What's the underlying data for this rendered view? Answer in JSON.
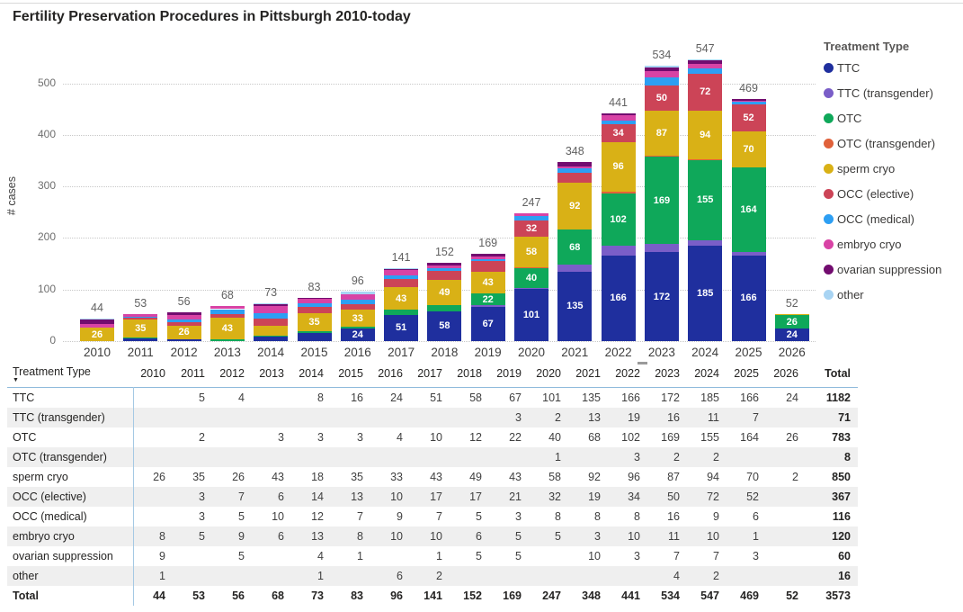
{
  "title": "Fertility Preservation Procedures in Pittsburgh 2010-today",
  "chart_data": {
    "type": "stacked-bar",
    "title": "Fertility Preservation Procedures in Pittsburgh 2010-today",
    "ylabel": "# cases",
    "ylim": [
      0,
      560
    ],
    "yticks": [
      0,
      100,
      200,
      300,
      400,
      500
    ],
    "grid": "dotted-horizontal",
    "legend_title": "Treatment Type",
    "legend_position": "right",
    "bar_label_min_value": 22,
    "categories": [
      "2010",
      "2011",
      "2012",
      "2013",
      "2014",
      "2015",
      "2016",
      "2017",
      "2018",
      "2019",
      "2020",
      "2021",
      "2022",
      "2023",
      "2024",
      "2025",
      "2026"
    ],
    "column_totals": [
      44,
      53,
      56,
      68,
      73,
      83,
      96,
      141,
      152,
      169,
      247,
      348,
      441,
      534,
      547,
      469,
      52
    ],
    "grand_total": 3573,
    "series": [
      {
        "name": "TTC",
        "color": "#1F2F9E",
        "values": [
          null,
          5,
          4,
          null,
          8,
          16,
          24,
          51,
          58,
          67,
          101,
          135,
          166,
          172,
          185,
          166,
          24
        ],
        "row_total": 1182
      },
      {
        "name": "TTC (transgender)",
        "color": "#7A5EC8",
        "values": [
          null,
          null,
          null,
          null,
          null,
          null,
          null,
          null,
          null,
          3,
          2,
          13,
          19,
          16,
          11,
          7,
          null
        ],
        "row_total": 71
      },
      {
        "name": "OTC",
        "color": "#0FA85A",
        "values": [
          null,
          2,
          null,
          3,
          3,
          3,
          4,
          10,
          12,
          22,
          40,
          68,
          102,
          169,
          155,
          164,
          26
        ],
        "row_total": 783
      },
      {
        "name": "OTC (transgender)",
        "color": "#E0613A",
        "values": [
          null,
          null,
          null,
          null,
          null,
          null,
          null,
          null,
          null,
          null,
          1,
          null,
          3,
          2,
          2,
          null,
          null
        ],
        "row_total": 8
      },
      {
        "name": "sperm cryo",
        "color": "#D9B116",
        "values": [
          26,
          35,
          26,
          43,
          18,
          35,
          33,
          43,
          49,
          43,
          58,
          92,
          96,
          87,
          94,
          70,
          2
        ],
        "row_total": 850
      },
      {
        "name": "OCC (elective)",
        "color": "#CC4457",
        "values": [
          null,
          3,
          7,
          6,
          14,
          13,
          10,
          17,
          17,
          21,
          32,
          19,
          34,
          50,
          72,
          52,
          null
        ],
        "row_total": 367
      },
      {
        "name": "OCC (medical)",
        "color": "#2D9FF3",
        "values": [
          null,
          3,
          5,
          10,
          12,
          7,
          9,
          7,
          5,
          3,
          8,
          8,
          8,
          16,
          9,
          6,
          null
        ],
        "row_total": 116
      },
      {
        "name": "embryo cryo",
        "color": "#D843A5",
        "values": [
          8,
          5,
          9,
          6,
          13,
          8,
          10,
          10,
          6,
          5,
          5,
          3,
          10,
          11,
          10,
          1,
          null
        ],
        "row_total": 120
      },
      {
        "name": "ovarian suppression",
        "color": "#720C6F",
        "values": [
          9,
          null,
          5,
          null,
          4,
          1,
          null,
          1,
          5,
          5,
          null,
          10,
          3,
          7,
          7,
          3,
          null
        ],
        "row_total": 60
      },
      {
        "name": "other",
        "color": "#A8D4F3",
        "values": [
          1,
          null,
          null,
          null,
          1,
          null,
          6,
          2,
          null,
          null,
          null,
          null,
          null,
          4,
          2,
          null,
          null
        ],
        "row_total": 16
      }
    ]
  },
  "table": {
    "first_col_header": "Treatment Type",
    "sort_icon": "▼",
    "total_col_header": "Total",
    "total_row_label": "Total"
  }
}
